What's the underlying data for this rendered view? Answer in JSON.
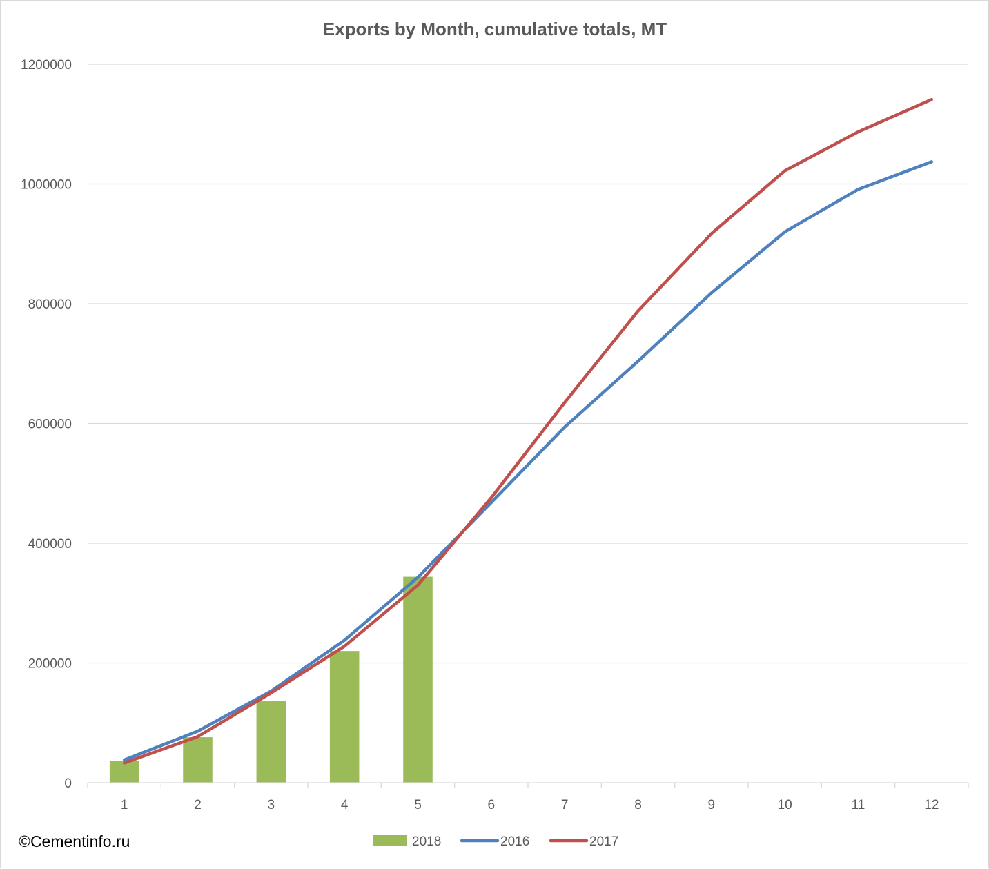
{
  "chart_data": {
    "type": "bar+line",
    "title": "Exports by Month, cumulative totals, MT",
    "categories": [
      "1",
      "2",
      "3",
      "4",
      "5",
      "6",
      "7",
      "8",
      "9",
      "10",
      "11",
      "12"
    ],
    "ylim": [
      0,
      1200000
    ],
    "yticks": [
      "0",
      "200000",
      "400000",
      "600000",
      "800000",
      "1000000",
      "1200000"
    ],
    "grid": true,
    "legend_position": "bottom",
    "series": [
      {
        "name": "2018",
        "type": "bar",
        "color": "#9bbb59",
        "values": [
          36000,
          76000,
          136000,
          220000,
          344000,
          null,
          null,
          null,
          null,
          null,
          null,
          null
        ]
      },
      {
        "name": "2016",
        "type": "line",
        "color": "#4f81bd",
        "values": [
          38000,
          86000,
          153000,
          238000,
          343000,
          468000,
          594000,
          704000,
          818000,
          920000,
          991000,
          1037000
        ]
      },
      {
        "name": "2017",
        "type": "line",
        "color": "#c0504d",
        "values": [
          33000,
          77000,
          150000,
          228000,
          330000,
          476000,
          635000,
          788000,
          917000,
          1022000,
          1087000,
          1141000
        ]
      }
    ]
  },
  "watermark": "©Cementinfo.ru"
}
